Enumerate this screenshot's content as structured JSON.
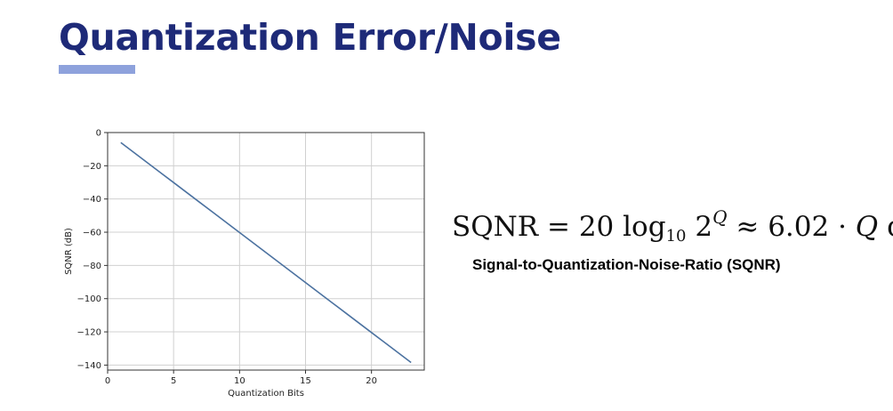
{
  "slide": {
    "title": "Quantization Error/Noise",
    "accent_color": "#1e2a78",
    "underline_color": "#8ea2dc"
  },
  "formula": {
    "lhs": "SQNR",
    "eq": "=",
    "coef": "20",
    "log": "log",
    "log_base": "10",
    "base": "2",
    "exponent": "Q",
    "approx": "≈",
    "factor": "6.02",
    "dot": "·",
    "variable": "Q",
    "unit": "dB",
    "caption": "Signal-to-Quantization-Noise-Ratio (SQNR)"
  },
  "chart_data": {
    "type": "line",
    "xlabel": "Quantization Bits",
    "ylabel": "SQNR (dB)",
    "xlim": [
      0,
      24
    ],
    "ylim": [
      -143,
      0
    ],
    "xticks": [
      0,
      5,
      10,
      15,
      20
    ],
    "yticks": [
      0,
      -20,
      -40,
      -60,
      -80,
      -100,
      -120,
      -140
    ],
    "grid": true,
    "series": [
      {
        "color": "#4c72a0",
        "x": [
          1,
          2,
          3,
          4,
          5,
          6,
          7,
          8,
          9,
          10,
          11,
          12,
          13,
          14,
          15,
          16,
          17,
          18,
          19,
          20,
          21,
          22,
          23
        ],
        "y": [
          -6.02,
          -12.04,
          -18.06,
          -24.08,
          -30.1,
          -36.12,
          -42.14,
          -48.16,
          -54.18,
          -60.2,
          -66.22,
          -72.24,
          -78.26,
          -84.28,
          -90.3,
          -96.32,
          -102.34,
          -108.36,
          -114.38,
          -120.4,
          -126.42,
          -132.44,
          -138.46
        ]
      }
    ]
  }
}
